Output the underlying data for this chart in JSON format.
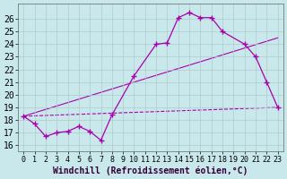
{
  "background_color": "#c8e8ec",
  "grid_color": "#b0cccc",
  "line_color": "#aa00aa",
  "x_ticks": [
    0,
    1,
    2,
    3,
    4,
    5,
    6,
    7,
    8,
    9,
    10,
    11,
    12,
    13,
    14,
    15,
    16,
    17,
    18,
    19,
    20,
    21,
    22,
    23
  ],
  "y_ticks": [
    16,
    17,
    18,
    19,
    20,
    21,
    22,
    23,
    24,
    25,
    26
  ],
  "ylim": [
    15.5,
    27.2
  ],
  "xlim": [
    -0.5,
    23.5
  ],
  "line1_x": [
    0,
    1,
    2,
    3,
    4,
    5,
    6,
    7,
    8,
    10,
    12,
    13,
    14,
    15,
    16,
    17,
    18,
    20,
    21,
    22,
    23
  ],
  "line1_y": [
    18.3,
    17.7,
    16.7,
    17.0,
    17.1,
    17.5,
    17.1,
    16.4,
    18.4,
    21.5,
    24.0,
    24.1,
    26.1,
    26.5,
    26.1,
    26.1,
    25.0,
    24.0,
    23.0,
    21.0,
    19.0
  ],
  "line2_x": [
    0,
    23
  ],
  "line2_y": [
    18.3,
    19.0
  ],
  "line3_x": [
    0,
    23
  ],
  "line3_y": [
    18.3,
    24.5
  ],
  "xlabel": "Windchill (Refroidissement éolien,°C)",
  "tick_fontsize": 6,
  "xlabel_fontsize": 7
}
